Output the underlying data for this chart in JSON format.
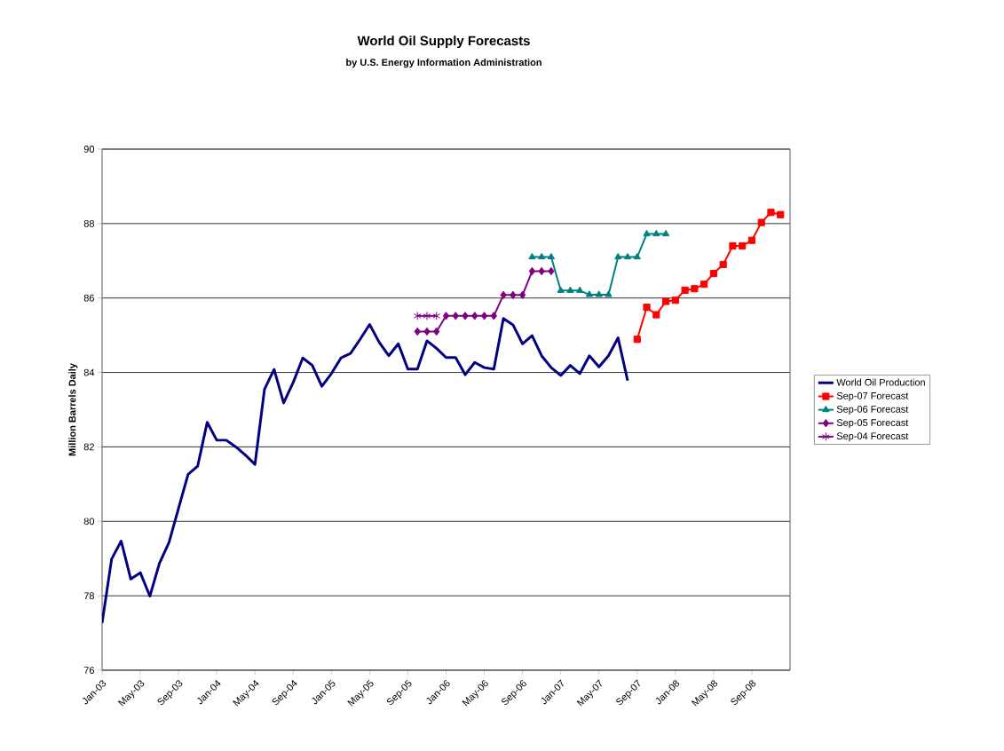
{
  "chart_data": {
    "type": "line",
    "title": "World Oil Supply Forecasts",
    "subtitle": "by U.S. Energy Information Administration",
    "ylabel": "Million Barrels Daily",
    "categories": [
      "Jan-03",
      null,
      null,
      null,
      "May-03",
      null,
      null,
      null,
      "Sep-03",
      null,
      null,
      null,
      "Jan-04",
      null,
      null,
      null,
      "May-04",
      null,
      null,
      null,
      "Sep-04",
      null,
      null,
      null,
      "Jan-05",
      null,
      null,
      null,
      "May-05",
      null,
      null,
      null,
      "Sep-05",
      null,
      null,
      null,
      "Jan-06",
      null,
      null,
      null,
      "May-06",
      null,
      null,
      null,
      "Sep-06",
      null,
      null,
      null,
      "Jan-07",
      null,
      null,
      null,
      "May-07",
      null,
      null,
      null,
      "Sep-07",
      null,
      null,
      null,
      "Jan-08",
      null,
      null,
      null,
      "May-08",
      null,
      null,
      null,
      "Sep-08",
      null,
      null,
      null
    ],
    "ylim": [
      76,
      90
    ],
    "yticks": [
      76,
      78,
      80,
      82,
      84,
      86,
      88,
      90
    ],
    "grid": "y",
    "legend": "right",
    "series": [
      {
        "name": "World Oil Production",
        "color": "#000080",
        "marker": "none",
        "values": [
          77.27,
          78.99,
          79.47,
          78.45,
          78.62,
          77.99,
          78.87,
          79.43,
          80.35,
          81.26,
          81.48,
          82.66,
          82.18,
          82.18,
          82.0,
          81.78,
          81.53,
          83.55,
          84.08,
          83.18,
          83.73,
          84.39,
          84.19,
          83.63,
          83.97,
          84.39,
          84.51,
          84.89,
          85.29,
          84.81,
          84.45,
          84.77,
          84.09,
          84.09,
          84.85,
          84.65,
          84.4,
          84.4,
          83.94,
          84.27,
          84.13,
          84.09,
          85.45,
          85.28,
          84.77,
          84.99,
          84.45,
          84.13,
          83.92,
          84.19,
          83.97,
          84.45,
          84.15,
          84.45,
          84.93,
          83.78,
          null,
          null,
          null,
          null,
          null,
          null,
          null,
          null,
          null,
          null,
          null,
          null,
          null,
          null,
          null,
          null
        ]
      },
      {
        "name": "Sep-07 Forecast",
        "color": "#ff0000",
        "marker": "square",
        "values": [
          null,
          null,
          null,
          null,
          null,
          null,
          null,
          null,
          null,
          null,
          null,
          null,
          null,
          null,
          null,
          null,
          null,
          null,
          null,
          null,
          null,
          null,
          null,
          null,
          null,
          null,
          null,
          null,
          null,
          null,
          null,
          null,
          null,
          null,
          null,
          null,
          null,
          null,
          null,
          null,
          null,
          null,
          null,
          null,
          null,
          null,
          null,
          null,
          null,
          null,
          null,
          null,
          null,
          null,
          null,
          null,
          84.89,
          85.75,
          85.55,
          85.91,
          85.94,
          86.21,
          86.25,
          86.37,
          86.66,
          86.9,
          87.4,
          87.4,
          87.55,
          88.03,
          88.3,
          88.24
        ]
      },
      {
        "name": "Sep-06 Forecast",
        "color": "#008080",
        "marker": "triangle",
        "values": [
          null,
          null,
          null,
          null,
          null,
          null,
          null,
          null,
          null,
          null,
          null,
          null,
          null,
          null,
          null,
          null,
          null,
          null,
          null,
          null,
          null,
          null,
          null,
          null,
          null,
          null,
          null,
          null,
          null,
          null,
          null,
          null,
          null,
          null,
          null,
          null,
          null,
          null,
          null,
          null,
          null,
          null,
          null,
          null,
          null,
          87.1,
          87.1,
          87.1,
          86.2,
          86.2,
          86.2,
          86.09,
          86.09,
          86.09,
          87.1,
          87.1,
          87.1,
          87.72,
          87.72,
          87.72,
          null,
          null,
          null,
          null,
          null,
          null,
          null,
          null,
          null,
          null,
          null,
          null
        ]
      },
      {
        "name": "Sep-05 Forecast",
        "color": "#800080",
        "marker": "diamond",
        "values": [
          null,
          null,
          null,
          null,
          null,
          null,
          null,
          null,
          null,
          null,
          null,
          null,
          null,
          null,
          null,
          null,
          null,
          null,
          null,
          null,
          null,
          null,
          null,
          null,
          null,
          null,
          null,
          null,
          null,
          null,
          null,
          null,
          null,
          85.1,
          85.1,
          85.1,
          85.52,
          85.52,
          85.52,
          85.52,
          85.52,
          85.52,
          86.08,
          86.08,
          86.08,
          86.72,
          86.72,
          86.72,
          null,
          null,
          null,
          null,
          null,
          null,
          null,
          null,
          null,
          null,
          null,
          null,
          null,
          null,
          null,
          null,
          null,
          null,
          null,
          null,
          null,
          null,
          null,
          null
        ]
      },
      {
        "name": "Sep-04 Forecast",
        "color": "#800080",
        "marker": "cross",
        "values": [
          null,
          null,
          null,
          null,
          null,
          null,
          null,
          null,
          null,
          null,
          null,
          null,
          null,
          null,
          null,
          null,
          null,
          null,
          null,
          null,
          null,
          null,
          null,
          null,
          null,
          null,
          null,
          null,
          null,
          null,
          null,
          null,
          null,
          85.52,
          85.52,
          85.52,
          null,
          null,
          null,
          null,
          null,
          null,
          null,
          null,
          null,
          null,
          null,
          null,
          null,
          null,
          null,
          null,
          null,
          null,
          null,
          null,
          null,
          null,
          null,
          null,
          null,
          null,
          null,
          null,
          null,
          null,
          null,
          null,
          null,
          null,
          null,
          null
        ]
      }
    ]
  }
}
